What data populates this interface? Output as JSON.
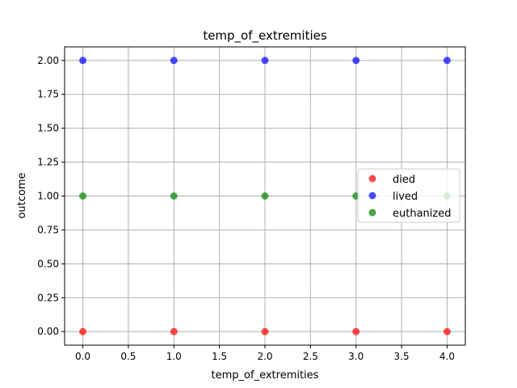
{
  "chart_data": {
    "type": "scatter",
    "title": "temp_of_extremities",
    "xlabel": "temp_of_extremities",
    "ylabel": "outcome",
    "xlim": [
      -0.2,
      4.2
    ],
    "ylim": [
      -0.1,
      2.1
    ],
    "xticks": [
      0.0,
      0.5,
      1.0,
      1.5,
      2.0,
      2.5,
      3.0,
      3.5,
      4.0
    ],
    "yticks": [
      0.0,
      0.25,
      0.5,
      0.75,
      1.0,
      1.25,
      1.5,
      1.75,
      2.0
    ],
    "xtick_labels": [
      "0.0",
      "0.5",
      "1.0",
      "1.5",
      "2.0",
      "2.5",
      "3.0",
      "3.5",
      "4.0"
    ],
    "ytick_labels": [
      "0.00",
      "0.25",
      "0.50",
      "0.75",
      "1.00",
      "1.25",
      "1.50",
      "1.75",
      "2.00"
    ],
    "grid": true,
    "legend_position": "center-right",
    "series": [
      {
        "name": "died",
        "color": "#ff0000",
        "points": [
          [
            0,
            0
          ],
          [
            1,
            0
          ],
          [
            2,
            0
          ],
          [
            3,
            0
          ],
          [
            4,
            0
          ]
        ]
      },
      {
        "name": "lived",
        "color": "#0000ff",
        "points": [
          [
            0,
            2
          ],
          [
            1,
            2
          ],
          [
            2,
            2
          ],
          [
            3,
            2
          ],
          [
            4,
            2
          ]
        ]
      },
      {
        "name": "euthanized",
        "color": "#008000",
        "points": [
          [
            0,
            1
          ],
          [
            1,
            1
          ],
          [
            2,
            1
          ],
          [
            3,
            1
          ],
          [
            4,
            1
          ]
        ]
      }
    ]
  }
}
